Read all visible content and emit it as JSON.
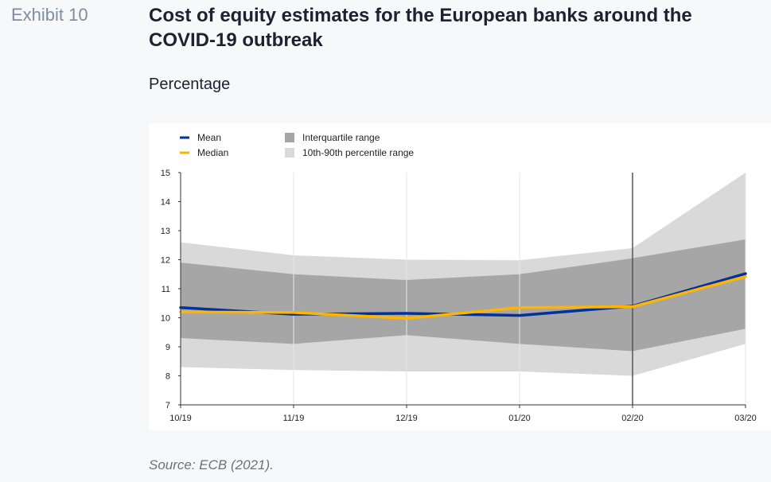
{
  "exhibit_label": "Exhibit 10",
  "title": "Cost of equity estimates for the European banks around the COVID-19 outbreak",
  "subtitle": "Percentage",
  "source": "Source: ECB (2021).",
  "chart_data": {
    "type": "line",
    "categories": [
      "10/19",
      "11/19",
      "12/19",
      "01/20",
      "02/20",
      "03/20"
    ],
    "ylim": [
      7,
      15
    ],
    "yticks": [
      7,
      8,
      9,
      10,
      11,
      12,
      13,
      14,
      15
    ],
    "grid": true,
    "legend_position": "top-left",
    "vertical_marker": "02/20",
    "series": [
      {
        "name": "Mean",
        "color": "#003299",
        "values": [
          10.35,
          10.12,
          10.15,
          10.08,
          10.4,
          11.52
        ]
      },
      {
        "name": "Median",
        "color": "#ffb400",
        "values": [
          10.2,
          10.18,
          9.98,
          10.35,
          10.38,
          11.42
        ]
      }
    ],
    "bands": [
      {
        "name": "10th-90th percentile range",
        "color": "#d9d9d9",
        "lower": [
          8.3,
          8.2,
          8.15,
          8.15,
          8.0,
          9.1
        ],
        "upper": [
          12.6,
          12.15,
          12.0,
          11.98,
          12.4,
          15.0
        ]
      },
      {
        "name": "Interquartile range",
        "color": "#a6a6a6",
        "lower": [
          9.3,
          9.1,
          9.4,
          9.1,
          8.85,
          9.62
        ],
        "upper": [
          11.9,
          11.5,
          11.3,
          11.5,
          12.05,
          12.7
        ]
      }
    ]
  }
}
